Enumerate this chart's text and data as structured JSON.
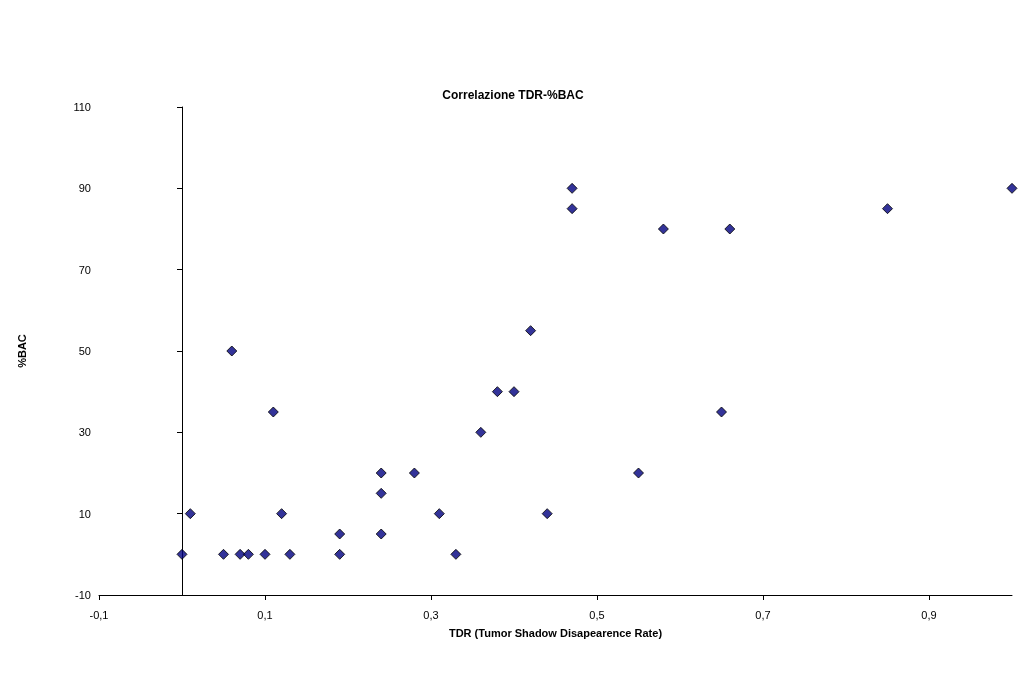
{
  "chart_data": {
    "type": "scatter",
    "title": "Correlazione TDR-%BAC",
    "xlabel": "TDR (Tumor Shadow Disapearence Rate)",
    "ylabel": "%BAC",
    "marker": "diamond",
    "grid": false,
    "xlim": [
      -0.1,
      1.0
    ],
    "xticks": [
      {
        "value": -0.1,
        "label": "-0,1"
      },
      {
        "value": 0.1,
        "label": "0,1"
      },
      {
        "value": 0.3,
        "label": "0,3"
      },
      {
        "value": 0.5,
        "label": "0,5"
      },
      {
        "value": 0.7,
        "label": "0,7"
      },
      {
        "value": 0.9,
        "label": "0,9"
      }
    ],
    "ylim": [
      -10,
      110
    ],
    "yticks": [
      -10,
      10,
      30,
      50,
      70,
      90,
      110
    ],
    "series": [
      {
        "color": "#000080",
        "x": [
          0,
          0.01,
          0.05,
          0.06,
          0.07,
          0.08,
          0.1,
          0.11,
          0.12,
          0.13,
          0.19,
          0.19,
          0.24,
          0.24,
          0.24,
          0.28,
          0.31,
          0.33,
          0.36,
          0.38,
          0.4,
          0.42,
          0.44,
          0.47,
          0.47,
          0.55,
          0.58,
          0.65,
          0.66,
          0.85,
          1.0
        ],
        "values": [
          0,
          10,
          0,
          50,
          0,
          0,
          0,
          35,
          10,
          0,
          5,
          0,
          20,
          15,
          5,
          20,
          10,
          0,
          30,
          40,
          40,
          55,
          10,
          90,
          85,
          20,
          80,
          35,
          80,
          85,
          90
        ]
      }
    ]
  }
}
